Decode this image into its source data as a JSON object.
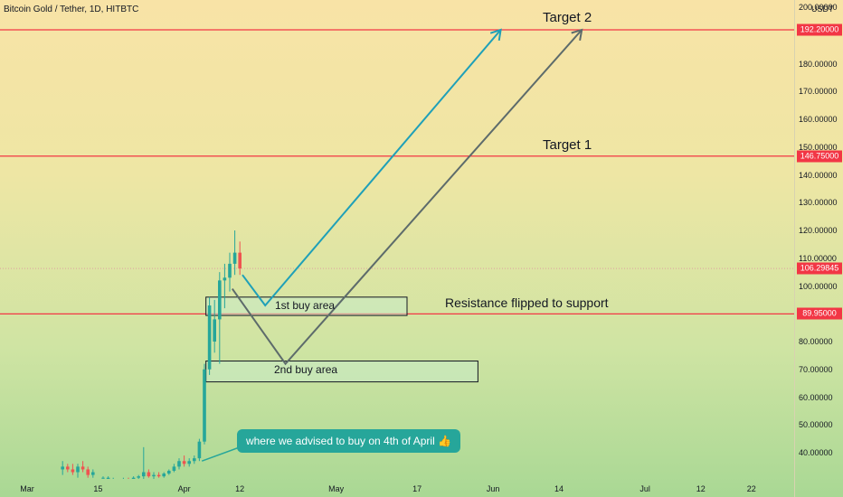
{
  "header": {
    "title": "Bitcoin Gold / Tether, 1D, HITBTC"
  },
  "price_axis": {
    "currency": "USDT",
    "top_cut_label": "200.00000",
    "ticks": [
      {
        "value": 180,
        "label": "180.00000"
      },
      {
        "value": 170,
        "label": "170.00000"
      },
      {
        "value": 160,
        "label": "160.00000"
      },
      {
        "value": 150,
        "label": "150.00000"
      },
      {
        "value": 140,
        "label": "140.00000"
      },
      {
        "value": 130,
        "label": "130.00000"
      },
      {
        "value": 120,
        "label": "120.00000"
      },
      {
        "value": 110,
        "label": "110.00000"
      },
      {
        "value": 100,
        "label": "100.00000"
      },
      {
        "value": 80,
        "label": "80.00000"
      },
      {
        "value": 70,
        "label": "70.00000"
      },
      {
        "value": 60,
        "label": "60.00000"
      },
      {
        "value": 50,
        "label": "50.00000"
      },
      {
        "value": 40,
        "label": "40.00000"
      }
    ],
    "tags": [
      {
        "value": 192.2,
        "label": "192.20000",
        "color": "#f23645"
      },
      {
        "value": 146.75,
        "label": "146.75000",
        "color": "#f23645"
      },
      {
        "value": 106.29845,
        "label": "106.29845",
        "color": "#f23645"
      },
      {
        "value": 89.95,
        "label": "89.95000",
        "color": "#f23645"
      }
    ]
  },
  "time_axis": {
    "labels": [
      {
        "day": 0,
        "label": "Mar"
      },
      {
        "day": 14,
        "label": "15"
      },
      {
        "day": 31,
        "label": "Apr"
      },
      {
        "day": 42,
        "label": "12"
      },
      {
        "day": 61,
        "label": "May"
      },
      {
        "day": 77,
        "label": "17"
      },
      {
        "day": 92,
        "label": "Jun"
      },
      {
        "day": 105,
        "label": "14"
      },
      {
        "day": 122,
        "label": "Jul"
      },
      {
        "day": 133,
        "label": "12"
      },
      {
        "day": 143,
        "label": "22"
      }
    ]
  },
  "annotations": {
    "target2": "Target 2",
    "target1": "Target 1",
    "resistance": "Resistance flipped to support",
    "buy1": "1st buy area",
    "buy2": "2nd buy area",
    "callout": "where we advised to buy on 4th of April 👍"
  },
  "colors": {
    "up": "#26a69a",
    "down": "#ef5350",
    "level_line": "#f23645",
    "path_blue": "#1fa0b8",
    "path_gray": "#5d6b6b",
    "current_price_line": "#e0a0a0"
  },
  "chart_data": {
    "type": "candlestick",
    "title": "Bitcoin Gold / Tether, 1D, HITBTC",
    "x_unit": "days since Mar 1",
    "ylim": [
      28,
      200
    ],
    "horizontal_levels": [
      192.2,
      146.75,
      89.95
    ],
    "current_price": 106.29845,
    "candles": [
      {
        "day": 7,
        "o": 34,
        "h": 37,
        "l": 32,
        "c": 35
      },
      {
        "day": 8,
        "o": 35,
        "h": 36,
        "l": 33,
        "c": 34
      },
      {
        "day": 9,
        "o": 34,
        "h": 36,
        "l": 32,
        "c": 33
      },
      {
        "day": 10,
        "o": 33,
        "h": 36,
        "l": 31,
        "c": 35
      },
      {
        "day": 11,
        "o": 35,
        "h": 37,
        "l": 33,
        "c": 34
      },
      {
        "day": 12,
        "o": 34,
        "h": 35,
        "l": 31,
        "c": 32
      },
      {
        "day": 13,
        "o": 32,
        "h": 34,
        "l": 31,
        "c": 33
      },
      {
        "day": 15,
        "o": 31,
        "h": 31.5,
        "l": 30.5,
        "c": 31
      },
      {
        "day": 16,
        "o": 30.5,
        "h": 31.5,
        "l": 30,
        "c": 31
      },
      {
        "day": 17,
        "o": 30.5,
        "h": 31,
        "l": 30,
        "c": 30.5
      },
      {
        "day": 19,
        "o": 30.5,
        "h": 31,
        "l": 30,
        "c": 30.5
      },
      {
        "day": 20,
        "o": 30.5,
        "h": 31,
        "l": 30,
        "c": 30.2
      },
      {
        "day": 21,
        "o": 30.2,
        "h": 31.5,
        "l": 30,
        "c": 31
      },
      {
        "day": 22,
        "o": 31,
        "h": 32,
        "l": 30.5,
        "c": 31.5
      },
      {
        "day": 23,
        "o": 31.5,
        "h": 42,
        "l": 30,
        "c": 33
      },
      {
        "day": 24,
        "o": 33,
        "h": 34,
        "l": 31,
        "c": 31.5
      },
      {
        "day": 25,
        "o": 31.5,
        "h": 33,
        "l": 30.5,
        "c": 32
      },
      {
        "day": 26,
        "o": 32,
        "h": 33,
        "l": 31,
        "c": 31.5
      },
      {
        "day": 27,
        "o": 31.5,
        "h": 33,
        "l": 31,
        "c": 32.5
      },
      {
        "day": 28,
        "o": 32.5,
        "h": 34,
        "l": 32,
        "c": 33.5
      },
      {
        "day": 29,
        "o": 33.5,
        "h": 36,
        "l": 33,
        "c": 35
      },
      {
        "day": 30,
        "o": 35,
        "h": 38,
        "l": 34,
        "c": 37
      },
      {
        "day": 31,
        "o": 37,
        "h": 39,
        "l": 35,
        "c": 36
      },
      {
        "day": 32,
        "o": 36,
        "h": 38,
        "l": 35,
        "c": 37
      },
      {
        "day": 33,
        "o": 37,
        "h": 39,
        "l": 36,
        "c": 38
      },
      {
        "day": 34,
        "o": 38,
        "h": 45,
        "l": 37,
        "c": 44
      },
      {
        "day": 35,
        "o": 44,
        "h": 72,
        "l": 43,
        "c": 70
      },
      {
        "day": 36,
        "o": 70,
        "h": 96,
        "l": 68,
        "c": 93
      },
      {
        "day": 37,
        "o": 80,
        "h": 95,
        "l": 76,
        "c": 88
      },
      {
        "day": 38,
        "o": 88,
        "h": 105,
        "l": 72,
        "c": 102
      },
      {
        "day": 39,
        "o": 102,
        "h": 108,
        "l": 92,
        "c": 103
      },
      {
        "day": 40,
        "o": 103,
        "h": 112,
        "l": 98,
        "c": 108
      },
      {
        "day": 41,
        "o": 108,
        "h": 120,
        "l": 104,
        "c": 112
      },
      {
        "day": 42,
        "o": 112,
        "h": 116,
        "l": 104,
        "c": 106.3
      }
    ]
  }
}
